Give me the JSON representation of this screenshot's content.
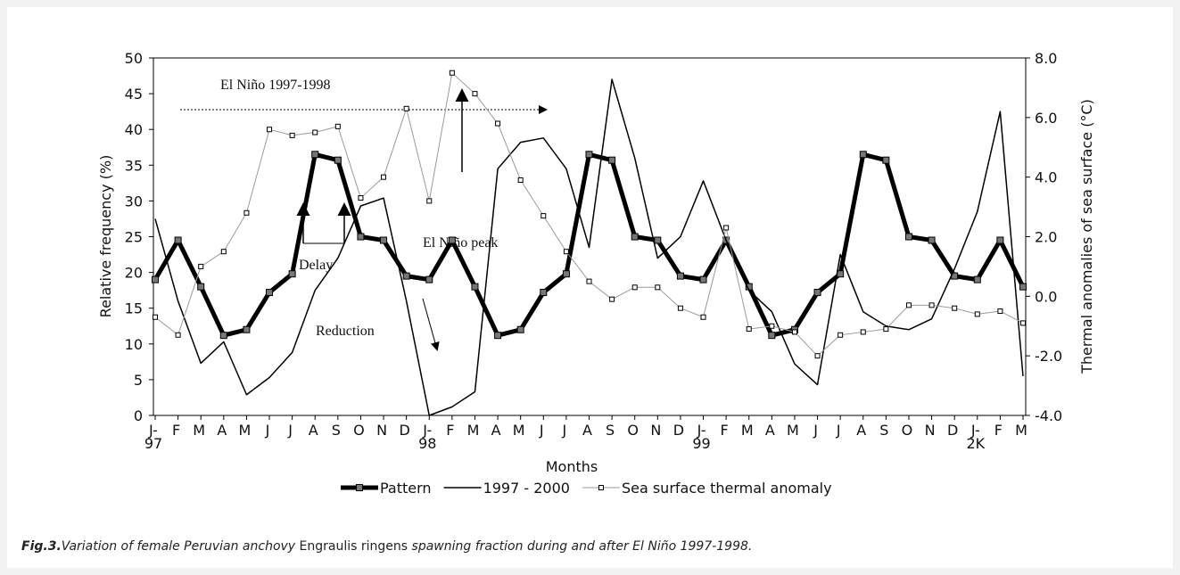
{
  "chart_data": {
    "type": "line",
    "xlabel": "Months",
    "ylabel": "Relative frequency (%)",
    "y2label": "Thermal anomalies of sea surface (°C)",
    "categories": [
      "J-\n97",
      "F",
      "M",
      "A",
      "M",
      "J",
      "J",
      "A",
      "S",
      "O",
      "N",
      "D",
      "J-\n98",
      "F",
      "M",
      "A",
      "M",
      "J",
      "J",
      "A",
      "S",
      "O",
      "N",
      "D",
      "J-\n99",
      "F",
      "M",
      "A",
      "M",
      "J",
      "J",
      "A",
      "S",
      "O",
      "N",
      "D",
      "J-\n2K",
      "F",
      "M"
    ],
    "series": [
      {
        "name": "Pattern",
        "color": "#000000",
        "values": [
          19,
          24.5,
          18,
          11.2,
          12,
          17.2,
          19.8,
          36.5,
          35.7,
          25,
          24.5,
          19.5,
          19,
          24.5,
          18,
          11.2,
          12,
          17.2,
          19.8,
          36.5,
          35.7,
          25,
          24.5,
          19.5,
          19,
          24.5,
          18,
          11.2,
          12,
          17.2,
          19.8,
          36.5,
          35.7,
          25,
          24.5,
          19.5,
          19,
          24.5,
          18
        ]
      },
      {
        "name": "1997 - 2000",
        "color": "#000000",
        "values": [
          27.5,
          16,
          7.3,
          10.3,
          2.9,
          5.3,
          8.8,
          17.5,
          22,
          29.3,
          30.4,
          16,
          0,
          1.2,
          3.3,
          34.5,
          38.2,
          38.8,
          34.5,
          23.5,
          47,
          36,
          22,
          25,
          32.8,
          24.5,
          17.5,
          14.5,
          7.2,
          4.3,
          22.5,
          14.5,
          12.5,
          12,
          13.5,
          20.5,
          28.5,
          42.5,
          5.5
        ]
      },
      {
        "name": "Sea surface thermal anomaly",
        "color": "#9a9a9a",
        "axis": "y2",
        "values": [
          -0.7,
          -1.3,
          1.0,
          1.5,
          2.8,
          5.6,
          5.4,
          5.5,
          5.7,
          3.3,
          4.0,
          6.3,
          3.2,
          7.5,
          6.8,
          5.8,
          3.9,
          2.7,
          1.5,
          0.5,
          -0.1,
          0.3,
          0.3,
          -0.4,
          -0.7,
          2.3,
          -1.1,
          -1.0,
          -1.2,
          -2.0,
          -1.3,
          -1.2,
          -1.1,
          -0.3,
          -0.3,
          -0.4,
          -0.6,
          -0.5,
          -0.9
        ]
      }
    ],
    "ylim": [
      0,
      50
    ],
    "yticks": [
      0,
      5,
      10,
      15,
      20,
      25,
      30,
      35,
      40,
      45,
      50
    ],
    "y2lim": [
      -4,
      8
    ],
    "y2ticks": [
      {
        "value": -4,
        "label": "-4.0"
      },
      {
        "value": -2,
        "label": "-2.0"
      },
      {
        "value": 0,
        "label": "0.0"
      },
      {
        "value": 2,
        "label": "2.0"
      },
      {
        "value": 4,
        "label": "4.0"
      },
      {
        "value": 6,
        "label": "6.0"
      },
      {
        "value": 8,
        "label": "8.0"
      }
    ],
    "legend": "bottom",
    "annotations": [
      "El Niño 1997-1998",
      "El Niño peak",
      "Delay",
      "Reduction"
    ],
    "caption": {
      "label": "Fig.3.",
      "text1": "Variation of female Peruvian anchovy ",
      "species": "Engraulis ringens",
      "text2": " spawning fraction during and after El Niño 1997-1998."
    }
  }
}
